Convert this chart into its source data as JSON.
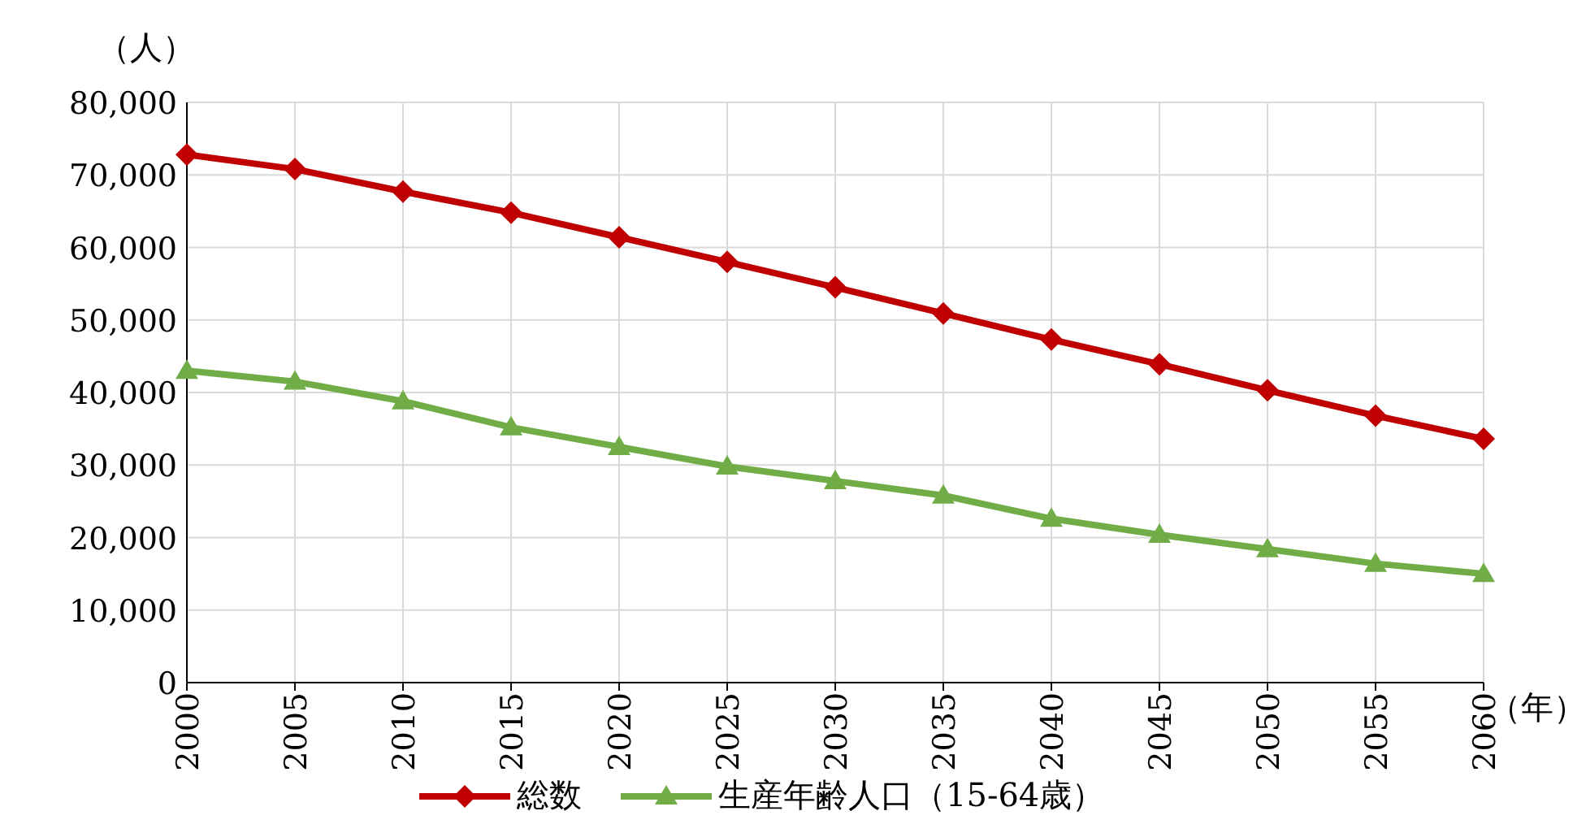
{
  "chart_data": {
    "type": "line",
    "ylabel": "（人）",
    "xlabel": "（年）",
    "x": [
      2000,
      2005,
      2010,
      2015,
      2020,
      2025,
      2030,
      2035,
      2040,
      2045,
      2050,
      2055,
      2060
    ],
    "series": [
      {
        "name": "総数",
        "color": "#c00000",
        "marker": "diamond",
        "values": [
          72800,
          70800,
          67700,
          64800,
          61400,
          58000,
          54500,
          50900,
          47300,
          43900,
          40300,
          36800,
          33600
        ]
      },
      {
        "name": "生産年齢人口（15-64歳）",
        "color": "#70ad47",
        "marker": "triangle",
        "values": [
          43000,
          41500,
          38800,
          35200,
          32500,
          29800,
          27800,
          25800,
          22600,
          20400,
          18400,
          16400,
          15000
        ]
      }
    ],
    "xlim": [
      2000,
      2060
    ],
    "xticks": [
      2000,
      2005,
      2010,
      2015,
      2020,
      2025,
      2030,
      2035,
      2040,
      2045,
      2050,
      2055,
      2060
    ],
    "ylim": [
      0,
      80000
    ],
    "yticks": [
      0,
      {
        "value": 10000,
        "label": "10,000"
      },
      {
        "value": 20000,
        "label": "20,000"
      },
      {
        "value": 30000,
        "label": "30,000"
      },
      {
        "value": 40000,
        "label": "40,000"
      },
      {
        "value": 50000,
        "label": "50,000"
      },
      {
        "value": 60000,
        "label": "60,000"
      },
      {
        "value": 70000,
        "label": "70,000"
      },
      {
        "value": 80000,
        "label": "80,000"
      }
    ],
    "grid": true,
    "legend": "bottom",
    "line_style": "solid"
  }
}
